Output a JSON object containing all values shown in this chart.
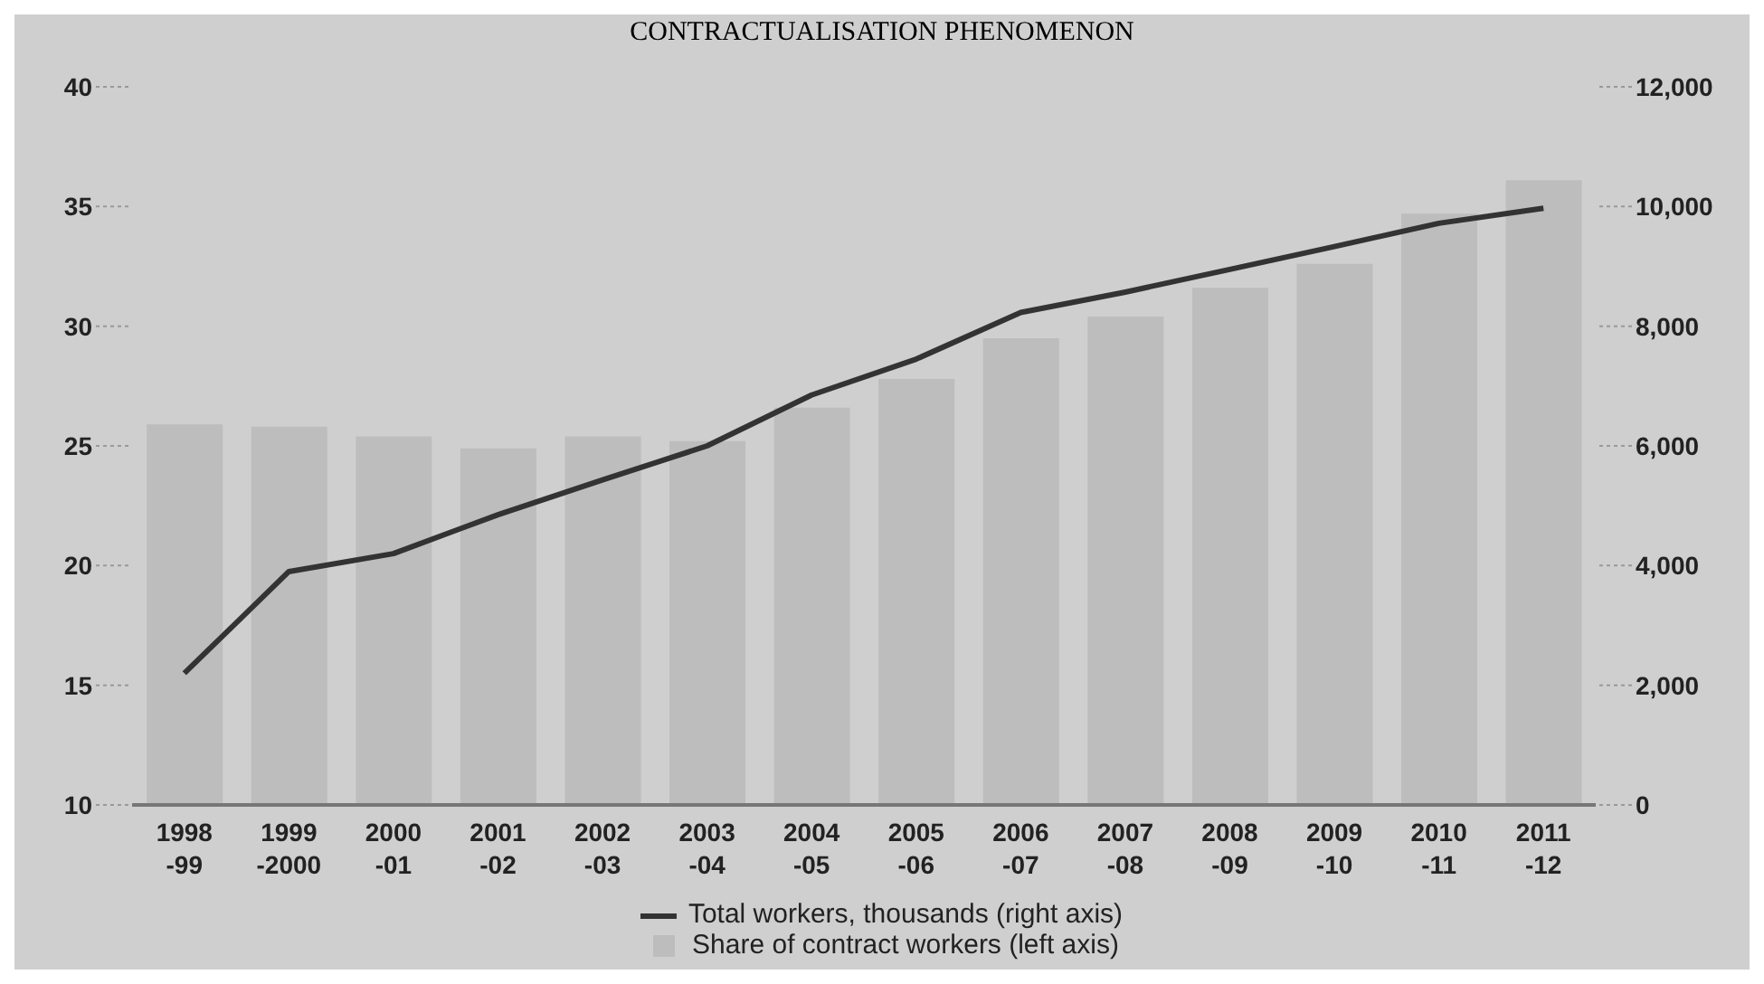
{
  "chart_data": {
    "type": "bar",
    "title": "CONTRACTUALISATION PHENOMENON",
    "categories": [
      "1998\n-99",
      "1999\n-2000",
      "2000\n-01",
      "2001\n-02",
      "2002\n-03",
      "2003\n-04",
      "2004\n-05",
      "2005\n-06",
      "2006\n-07",
      "2007\n-08",
      "2008\n-09",
      "2009\n-10",
      "2010\n-11",
      "2011\n-12"
    ],
    "series": [
      {
        "name": "Total workers, thousands (right axis)",
        "type": "line",
        "axis": "y2",
        "color": "#333333",
        "values": [
          2200,
          3900,
          4200,
          4850,
          5430,
          6000,
          6850,
          7450,
          8230,
          8570,
          8950,
          9330,
          9720,
          9970
        ]
      },
      {
        "name": "Share of contract workers (left axis)",
        "color": "#bdbdbd",
        "values": [
          25.9,
          25.8,
          25.4,
          24.9,
          25.4,
          25.2,
          26.6,
          27.8,
          29.5,
          30.4,
          31.6,
          32.6,
          34.7,
          36.1
        ]
      }
    ],
    "ylim": [
      10,
      40
    ],
    "yticks": [
      10,
      15,
      20,
      25,
      30,
      35,
      40
    ],
    "y2lim": [
      0,
      12000
    ],
    "y2ticks": [
      0,
      {
        "value": 2000,
        "label": "2,000"
      },
      {
        "value": 4000,
        "label": "4,000"
      },
      {
        "value": 6000,
        "label": "6,000"
      },
      {
        "value": 8000,
        "label": "8,000"
      },
      {
        "value": 10000,
        "label": "10,000"
      },
      {
        "value": 12000,
        "label": "12,000"
      }
    ],
    "legend": "bottom"
  }
}
